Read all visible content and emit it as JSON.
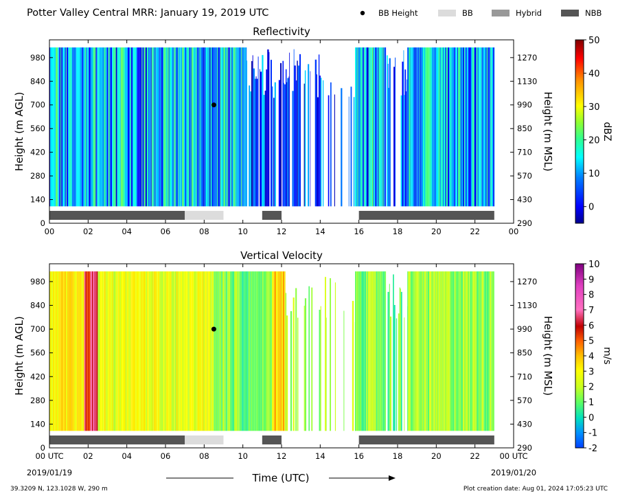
{
  "figure": {
    "title": "Potter Valley Central MRR:  January 19, 2019 UTC",
    "legend": [
      {
        "label": "BB Height",
        "marker": "dot",
        "color": "#000000"
      },
      {
        "label": "BB",
        "marker": "box",
        "color": "#dcdcdc"
      },
      {
        "label": "Hybrid",
        "marker": "box",
        "color": "#999999"
      },
      {
        "label": "NBB",
        "marker": "box",
        "color": "#555555"
      }
    ],
    "xlabel": "Time (UTC)",
    "x_start_date": "2019/01/19",
    "x_end_date": "2019/01/20",
    "location": "39.3209 N, 123.1028 W, 290 m",
    "creation": "Plot creation date: Aug 01, 2024 17:05:23 UTC"
  },
  "chart_data": [
    {
      "type": "heatmap",
      "title": "Reflectivity",
      "ylabel": "Height (m AGL)",
      "ylabel_right": "Height (m MSL)",
      "x_ticks": [
        "00",
        "02",
        "04",
        "06",
        "08",
        "10",
        "12",
        "14",
        "16",
        "18",
        "20",
        "22",
        "00"
      ],
      "x_last_tick_bottom": "00",
      "xlim": [
        0,
        24
      ],
      "y_ticks": [
        0,
        140,
        280,
        420,
        560,
        700,
        840,
        980
      ],
      "y_ticks_right": [
        290,
        430,
        570,
        710,
        850,
        990,
        1130,
        1270
      ],
      "ylim": [
        0,
        1085
      ],
      "data_top_m": 1040,
      "data_bottom_m": 100,
      "colorbar": {
        "label": "dBZ",
        "range": [
          -5,
          50
        ],
        "ticks": [
          0,
          10,
          20,
          30,
          40,
          50
        ]
      },
      "bb_height_points": [
        {
          "time_h": 8.5,
          "height_m": 700
        }
      ],
      "bright_band_segments": [
        {
          "start_h": 0.0,
          "end_h": 7.0,
          "class": "NBB"
        },
        {
          "start_h": 7.0,
          "end_h": 9.0,
          "class": "BB"
        },
        {
          "start_h": 11.0,
          "end_h": 12.0,
          "class": "NBB"
        },
        {
          "start_h": 16.0,
          "end_h": 23.0,
          "class": "NBB"
        }
      ],
      "precip_periods": [
        {
          "start_h": 0.0,
          "end_h": 10.2,
          "intensity": "moderate",
          "value": 12
        },
        {
          "start_h": 10.2,
          "end_h": 13.5,
          "intensity": "light",
          "value": 2
        },
        {
          "start_h": 13.5,
          "end_h": 15.8,
          "intensity": "sparse",
          "value": 3
        },
        {
          "start_h": 15.8,
          "end_h": 17.4,
          "intensity": "moderate",
          "value": 14
        },
        {
          "start_h": 17.4,
          "end_h": 18.5,
          "intensity": "light",
          "value": 4
        },
        {
          "start_h": 18.5,
          "end_h": 23.0,
          "intensity": "moderate",
          "value": 11
        }
      ]
    },
    {
      "type": "heatmap",
      "title": "Vertical Velocity",
      "ylabel": "Height (m AGL)",
      "ylabel_right": "Height (m MSL)",
      "x_ticks": [
        "00 UTC",
        "02",
        "04",
        "06",
        "08",
        "10",
        "12",
        "14",
        "16",
        "18",
        "20",
        "22",
        "00 UTC"
      ],
      "xlim": [
        0,
        24
      ],
      "y_ticks": [
        0,
        140,
        280,
        420,
        560,
        700,
        840,
        980
      ],
      "y_ticks_right": [
        290,
        430,
        570,
        710,
        850,
        990,
        1130,
        1270
      ],
      "ylim": [
        0,
        1085
      ],
      "data_top_m": 1040,
      "data_bottom_m": 100,
      "colorbar": {
        "label": "m/s",
        "range": [
          -2,
          10
        ],
        "ticks": [
          -2,
          -1,
          0,
          1,
          2,
          3,
          4,
          5,
          6,
          7,
          8,
          9,
          10
        ]
      },
      "bb_height_points": [
        {
          "time_h": 8.5,
          "height_m": 700
        }
      ],
      "bright_band_segments": [
        {
          "start_h": 0.0,
          "end_h": 7.0,
          "class": "NBB"
        },
        {
          "start_h": 7.0,
          "end_h": 9.0,
          "class": "BB"
        },
        {
          "start_h": 11.0,
          "end_h": 12.0,
          "class": "NBB"
        },
        {
          "start_h": 16.0,
          "end_h": 23.0,
          "class": "NBB"
        }
      ],
      "precip_periods": [
        {
          "start_h": 0.0,
          "end_h": 1.8,
          "intensity": "moderate",
          "value": 3.2
        },
        {
          "start_h": 1.8,
          "end_h": 2.5,
          "intensity": "heavy",
          "value": 5.8
        },
        {
          "start_h": 2.5,
          "end_h": 8.5,
          "intensity": "moderate",
          "value": 2.6
        },
        {
          "start_h": 8.5,
          "end_h": 11.5,
          "intensity": "moderate",
          "value": 1.2
        },
        {
          "start_h": 11.5,
          "end_h": 12.2,
          "intensity": "moderate",
          "value": 3.5
        },
        {
          "start_h": 12.2,
          "end_h": 15.8,
          "intensity": "sparse",
          "value": 1.6
        },
        {
          "start_h": 15.8,
          "end_h": 17.4,
          "intensity": "moderate",
          "value": 1.4
        },
        {
          "start_h": 17.4,
          "end_h": 18.5,
          "intensity": "light",
          "value": 1.0
        },
        {
          "start_h": 18.5,
          "end_h": 23.0,
          "intensity": "moderate",
          "value": 1.6
        }
      ]
    }
  ]
}
